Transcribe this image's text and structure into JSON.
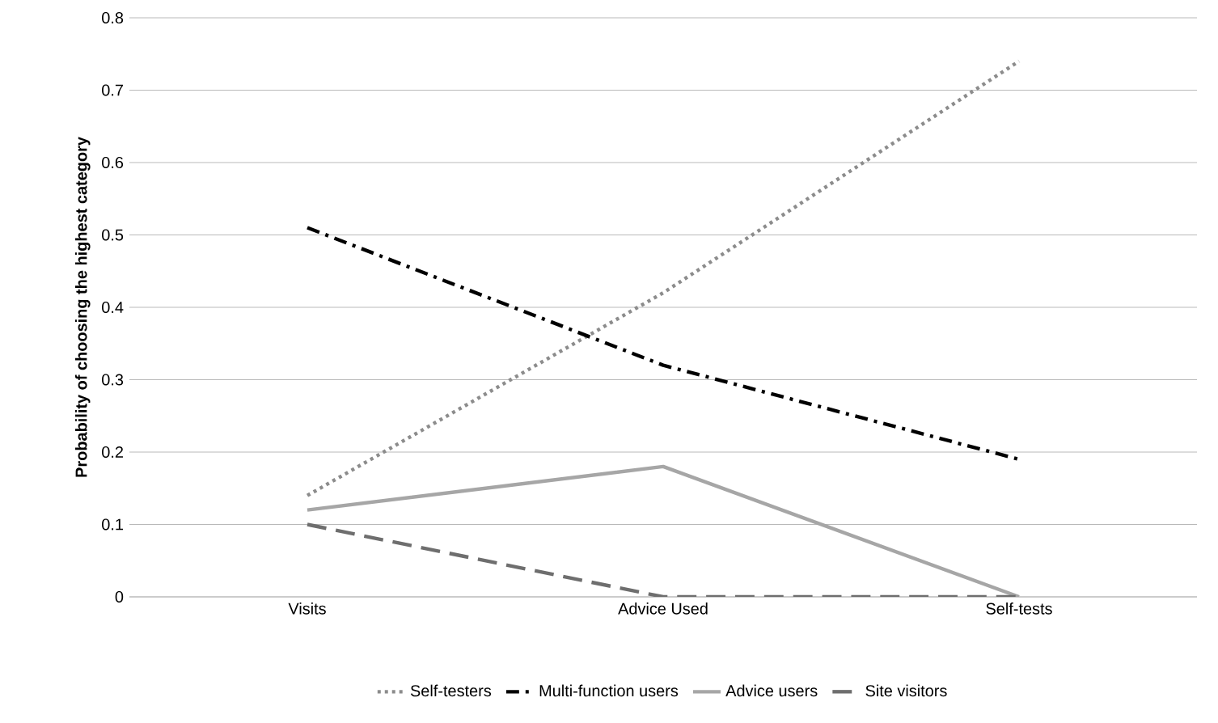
{
  "chart_data": {
    "type": "line",
    "ylabel": "**Probability of choosing the highest category**",
    "categories": [
      "Visits",
      "Advice Used",
      "Self-tests"
    ],
    "series": [
      {
        "name": "Self-testers",
        "color": "#8c8c8c",
        "line_style": "dotted",
        "values": [
          0.14,
          0.42,
          0.74
        ]
      },
      {
        "name": "Multi-function users",
        "color": "#000000",
        "line_style": "dashdot",
        "values": [
          0.51,
          0.32,
          0.19
        ]
      },
      {
        "name": "Advice users",
        "color": "#a6a6a6",
        "line_style": "solid",
        "values": [
          0.12,
          0.18,
          0
        ]
      },
      {
        "name": "Site visitors",
        "color": "#6e6e6e",
        "line_style": "dashed",
        "values": [
          0.1,
          0,
          0
        ]
      }
    ],
    "ylim": [
      0,
      0.8
    ],
    "yticks": [
      0,
      0.1,
      0.2,
      0.3,
      0.4,
      0.5,
      0.6,
      0.7,
      0.8
    ],
    "grid": "y",
    "legend": "bottom",
    "marker": "none"
  }
}
